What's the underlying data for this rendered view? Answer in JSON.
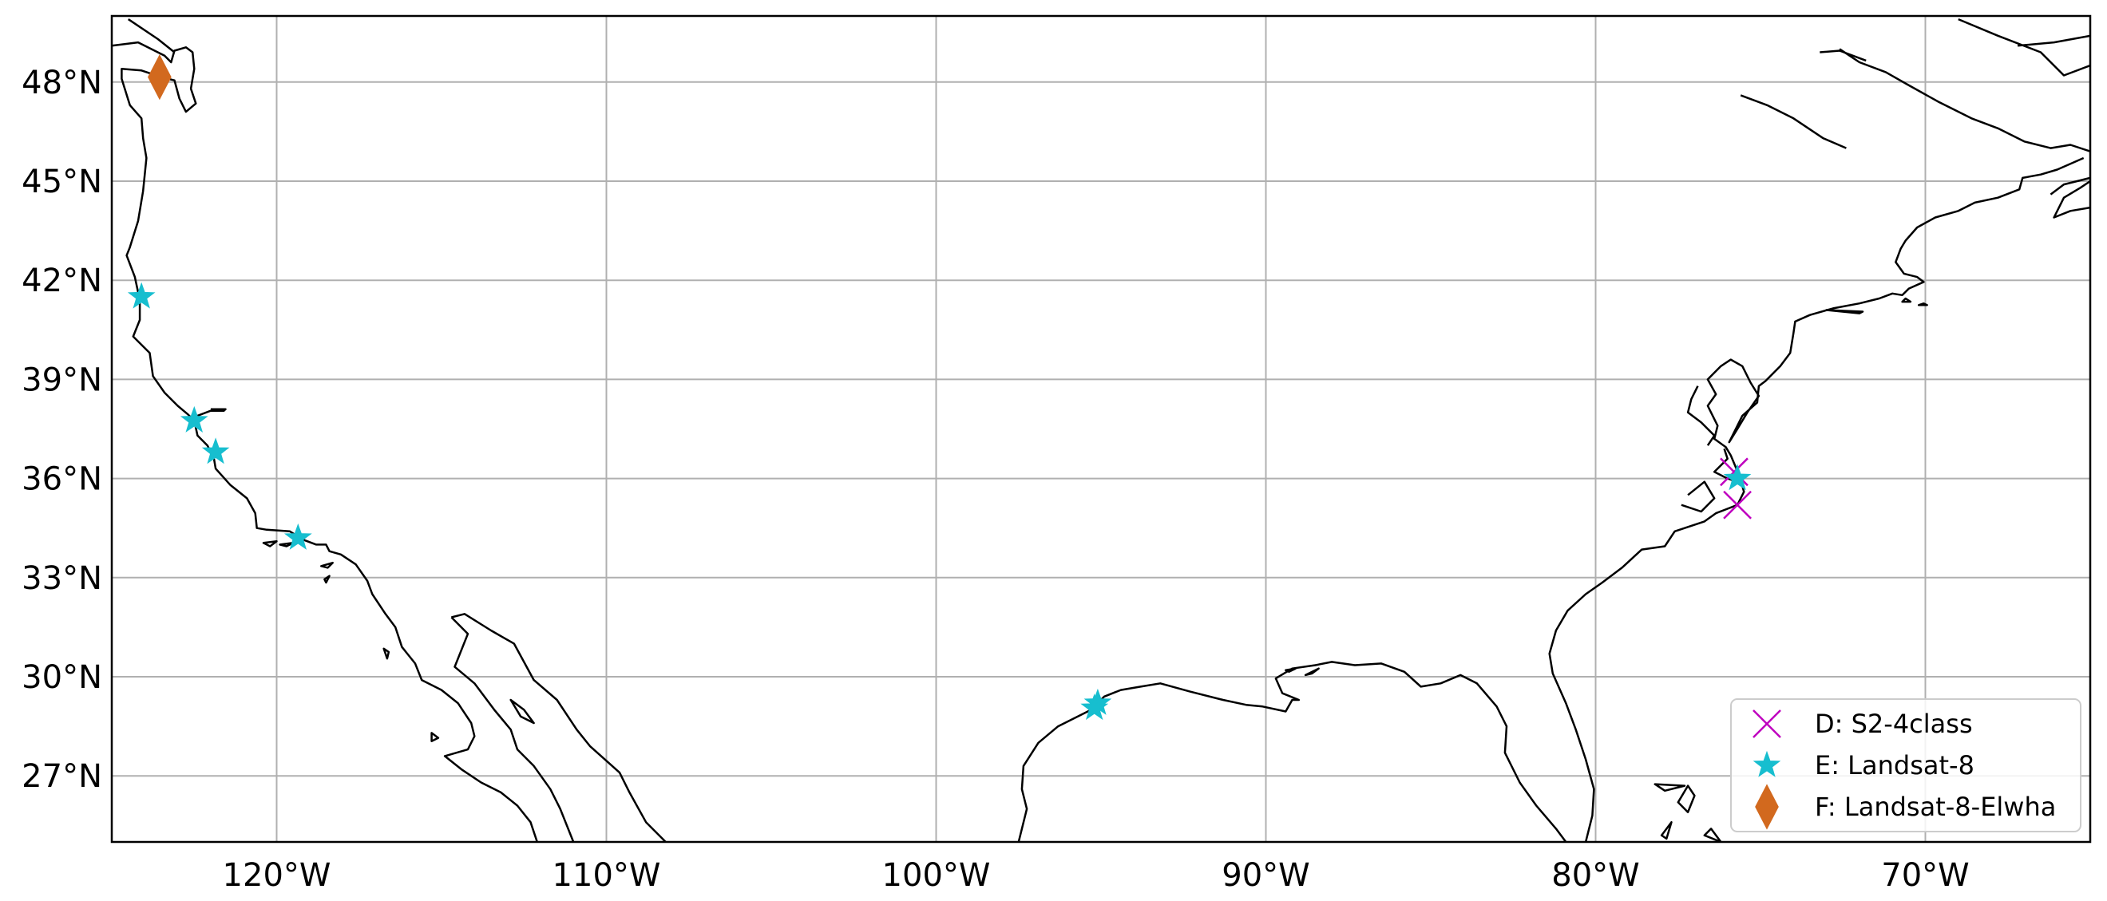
{
  "map": {
    "extent": {
      "lon": [
        -125,
        -65
      ],
      "lat": [
        25,
        50
      ]
    },
    "gridlines": true,
    "grid_color": "#b0b0b0",
    "lon_ticks": [
      {
        "value": -120,
        "label": "120°W"
      },
      {
        "value": -110,
        "label": "110°W"
      },
      {
        "value": -100,
        "label": "100°W"
      },
      {
        "value": -90,
        "label": "90°W"
      },
      {
        "value": -80,
        "label": "80°W"
      },
      {
        "value": -70,
        "label": "70°W"
      }
    ],
    "lat_ticks": [
      {
        "value": 48,
        "label": "48°N"
      },
      {
        "value": 45,
        "label": "45°N"
      },
      {
        "value": 42,
        "label": "42°N"
      },
      {
        "value": 39,
        "label": "39°N"
      },
      {
        "value": 36,
        "label": "36°N"
      },
      {
        "value": 33,
        "label": "33°N"
      },
      {
        "value": 30,
        "label": "30°N"
      },
      {
        "value": 27,
        "label": "27°N"
      }
    ],
    "legend_position": "lower-right"
  },
  "chart_data": {
    "type": "scatter",
    "series": [
      {
        "name": "D: S2-4class",
        "marker": "x",
        "color": "#bf00bf",
        "points": [
          {
            "lon": -75.8,
            "lat": 36.2
          },
          {
            "lon": -75.7,
            "lat": 35.2
          }
        ]
      },
      {
        "name": "E: Landsat-8",
        "marker": "star",
        "color": "#17becf",
        "points": [
          {
            "lon": -124.1,
            "lat": 41.5
          },
          {
            "lon": -122.5,
            "lat": 37.75
          },
          {
            "lon": -121.85,
            "lat": 36.8
          },
          {
            "lon": -119.35,
            "lat": 34.2
          },
          {
            "lon": -95.1,
            "lat": 29.2
          },
          {
            "lon": -95.2,
            "lat": 29.05
          },
          {
            "lon": -75.7,
            "lat": 36.0
          }
        ]
      },
      {
        "name": "F: Landsat-8-Elwha",
        "marker": "diamond",
        "color": "#d2691e",
        "points": [
          {
            "lon": -123.55,
            "lat": 48.15
          }
        ]
      }
    ]
  },
  "coastlines": [
    [
      [
        -125,
        49.1
      ],
      [
        -124.2,
        49.2
      ],
      [
        -123.4,
        48.8
      ],
      [
        -123.2,
        48.6
      ],
      [
        -123.1,
        48.95
      ],
      [
        -122.75,
        49.05
      ],
      [
        -122.55,
        48.9
      ],
      [
        -122.5,
        48.4
      ],
      [
        -122.6,
        47.8
      ],
      [
        -122.45,
        47.35
      ],
      [
        -122.75,
        47.1
      ],
      [
        -122.95,
        47.5
      ],
      [
        -123.1,
        48.05
      ],
      [
        -123.5,
        48.15
      ],
      [
        -124.1,
        48.35
      ],
      [
        -124.7,
        48.4
      ],
      [
        -124.7,
        48.1
      ],
      [
        -124.45,
        47.3
      ],
      [
        -124.1,
        46.9
      ],
      [
        -124.05,
        46.3
      ],
      [
        -123.95,
        45.7
      ],
      [
        -124.05,
        44.7
      ],
      [
        -124.2,
        43.8
      ],
      [
        -124.45,
        43.0
      ],
      [
        -124.55,
        42.75
      ],
      [
        -124.3,
        42.1
      ],
      [
        -124.15,
        41.4
      ],
      [
        -124.15,
        40.8
      ],
      [
        -124.35,
        40.3
      ],
      [
        -123.85,
        39.8
      ],
      [
        -123.75,
        39.1
      ],
      [
        -123.4,
        38.6
      ],
      [
        -123.0,
        38.2
      ],
      [
        -122.7,
        37.95
      ],
      [
        -122.5,
        37.75
      ],
      [
        -122.4,
        37.3
      ],
      [
        -122.1,
        37.0
      ],
      [
        -121.9,
        36.6
      ],
      [
        -121.85,
        36.3
      ],
      [
        -121.4,
        35.8
      ],
      [
        -120.9,
        35.4
      ],
      [
        -120.65,
        34.95
      ],
      [
        -120.6,
        34.5
      ],
      [
        -120.3,
        34.45
      ],
      [
        -119.6,
        34.4
      ],
      [
        -119.2,
        34.15
      ],
      [
        -118.8,
        34.0
      ],
      [
        -118.5,
        34.0
      ],
      [
        -118.4,
        33.8
      ],
      [
        -118.05,
        33.7
      ],
      [
        -117.6,
        33.4
      ],
      [
        -117.25,
        32.9
      ],
      [
        -117.1,
        32.5
      ],
      [
        -116.7,
        31.9
      ],
      [
        -116.4,
        31.5
      ],
      [
        -116.2,
        30.9
      ],
      [
        -115.8,
        30.4
      ],
      [
        -115.6,
        29.9
      ],
      [
        -115.0,
        29.6
      ],
      [
        -114.5,
        29.2
      ],
      [
        -114.1,
        28.6
      ],
      [
        -114.0,
        28.2
      ],
      [
        -114.2,
        27.8
      ],
      [
        -114.9,
        27.6
      ],
      [
        -114.4,
        27.2
      ],
      [
        -113.8,
        26.8
      ],
      [
        -113.2,
        26.5
      ],
      [
        -112.7,
        26.1
      ],
      [
        -112.3,
        25.6
      ],
      [
        -112.1,
        25.0
      ]
    ],
    [
      [
        -114.7,
        31.8
      ],
      [
        -114.2,
        31.3
      ],
      [
        -114.6,
        30.3
      ],
      [
        -114.0,
        29.8
      ],
      [
        -113.4,
        29.0
      ],
      [
        -112.9,
        28.4
      ],
      [
        -112.7,
        27.8
      ],
      [
        -112.2,
        27.3
      ],
      [
        -111.7,
        26.6
      ],
      [
        -111.4,
        26.0
      ],
      [
        -111.0,
        25.0
      ]
    ],
    [
      [
        -114.7,
        31.8
      ],
      [
        -114.3,
        31.9
      ],
      [
        -113.5,
        31.4
      ],
      [
        -112.8,
        31.0
      ],
      [
        -112.2,
        29.9
      ],
      [
        -111.5,
        29.3
      ],
      [
        -110.9,
        28.4
      ],
      [
        -110.5,
        27.9
      ],
      [
        -109.6,
        27.1
      ],
      [
        -109.3,
        26.5
      ],
      [
        -108.8,
        25.6
      ],
      [
        -108.2,
        25.0
      ]
    ],
    [
      [
        -97.5,
        25.0
      ],
      [
        -97.25,
        26.0
      ],
      [
        -97.4,
        26.6
      ],
      [
        -97.35,
        27.3
      ],
      [
        -96.9,
        28.0
      ],
      [
        -96.3,
        28.5
      ],
      [
        -95.3,
        29.0
      ],
      [
        -94.9,
        29.4
      ],
      [
        -94.4,
        29.6
      ],
      [
        -93.8,
        29.7
      ],
      [
        -93.2,
        29.8
      ],
      [
        -92.3,
        29.55
      ],
      [
        -91.3,
        29.3
      ],
      [
        -90.6,
        29.15
      ],
      [
        -90.1,
        29.1
      ],
      [
        -89.4,
        28.95
      ],
      [
        -89.2,
        29.3
      ],
      [
        -89.0,
        29.3
      ],
      [
        -89.5,
        29.5
      ],
      [
        -89.7,
        29.95
      ],
      [
        -89.2,
        30.25
      ],
      [
        -88.5,
        30.35
      ],
      [
        -88.0,
        30.45
      ],
      [
        -87.3,
        30.35
      ],
      [
        -86.5,
        30.4
      ],
      [
        -85.8,
        30.15
      ],
      [
        -85.3,
        29.7
      ],
      [
        -84.7,
        29.8
      ],
      [
        -84.1,
        30.05
      ],
      [
        -83.6,
        29.8
      ],
      [
        -83.0,
        29.1
      ],
      [
        -82.7,
        28.5
      ],
      [
        -82.75,
        27.7
      ],
      [
        -82.3,
        26.8
      ],
      [
        -81.8,
        26.1
      ],
      [
        -81.2,
        25.4
      ],
      [
        -80.9,
        25.0
      ]
    ],
    [
      [
        -80.3,
        25.0
      ],
      [
        -80.1,
        25.8
      ],
      [
        -80.05,
        26.6
      ],
      [
        -80.3,
        27.5
      ],
      [
        -80.6,
        28.4
      ],
      [
        -80.9,
        29.2
      ],
      [
        -81.3,
        30.1
      ],
      [
        -81.4,
        30.7
      ],
      [
        -81.2,
        31.4
      ],
      [
        -80.85,
        32.0
      ],
      [
        -80.3,
        32.5
      ],
      [
        -79.8,
        32.85
      ],
      [
        -79.2,
        33.3
      ],
      [
        -78.6,
        33.85
      ],
      [
        -77.9,
        33.95
      ],
      [
        -77.6,
        34.4
      ],
      [
        -76.7,
        34.7
      ],
      [
        -76.35,
        34.95
      ],
      [
        -75.7,
        35.2
      ],
      [
        -75.5,
        35.6
      ],
      [
        -75.65,
        36.1
      ],
      [
        -75.9,
        36.7
      ],
      [
        -76.05,
        36.95
      ],
      [
        -76.4,
        37.2
      ],
      [
        -76.3,
        37.6
      ],
      [
        -76.6,
        38.2
      ],
      [
        -76.35,
        38.55
      ],
      [
        -76.6,
        39.0
      ],
      [
        -76.2,
        39.4
      ],
      [
        -75.9,
        39.6
      ],
      [
        -75.55,
        39.4
      ],
      [
        -75.3,
        38.9
      ],
      [
        -75.05,
        38.5
      ],
      [
        -75.4,
        38.0
      ],
      [
        -75.7,
        37.5
      ],
      [
        -75.95,
        37.1
      ],
      [
        -75.55,
        37.9
      ],
      [
        -75.1,
        38.3
      ],
      [
        -75.05,
        38.8
      ],
      [
        -74.85,
        38.95
      ],
      [
        -74.4,
        39.4
      ],
      [
        -74.1,
        39.8
      ],
      [
        -74.0,
        40.4
      ],
      [
        -73.95,
        40.75
      ],
      [
        -73.5,
        40.95
      ],
      [
        -72.8,
        41.15
      ],
      [
        -72.0,
        41.3
      ],
      [
        -71.4,
        41.45
      ],
      [
        -71.0,
        41.6
      ],
      [
        -70.7,
        41.55
      ],
      [
        -70.5,
        41.75
      ],
      [
        -70.05,
        41.95
      ],
      [
        -70.25,
        42.1
      ],
      [
        -70.65,
        42.2
      ],
      [
        -70.9,
        42.55
      ],
      [
        -70.75,
        42.95
      ],
      [
        -70.6,
        43.2
      ],
      [
        -70.25,
        43.6
      ],
      [
        -69.7,
        43.9
      ],
      [
        -69.0,
        44.1
      ],
      [
        -68.5,
        44.35
      ],
      [
        -67.8,
        44.5
      ],
      [
        -67.15,
        44.75
      ],
      [
        -67.05,
        45.1
      ],
      [
        -66.5,
        45.2
      ],
      [
        -66.0,
        45.35
      ],
      [
        -65.2,
        45.7
      ]
    ],
    [
      [
        -65.0,
        44.2
      ],
      [
        -65.6,
        44.1
      ],
      [
        -66.1,
        43.9
      ],
      [
        -65.8,
        44.5
      ],
      [
        -65.3,
        44.8
      ],
      [
        -65.0,
        45.0
      ]
    ],
    [
      [
        -65.0,
        45.1
      ],
      [
        -65.8,
        44.9
      ],
      [
        -66.2,
        44.6
      ]
    ],
    [
      [
        -65.0,
        45.9
      ],
      [
        -65.6,
        46.1
      ],
      [
        -66.2,
        46.0
      ],
      [
        -67.0,
        46.2
      ],
      [
        -67.8,
        46.6
      ],
      [
        -68.6,
        46.9
      ],
      [
        -69.6,
        47.4
      ],
      [
        -70.5,
        47.9
      ],
      [
        -71.2,
        48.3
      ],
      [
        -72.0,
        48.6
      ],
      [
        -72.6,
        49.0
      ]
    ],
    [
      [
        -72.4,
        46.0
      ],
      [
        -73.1,
        46.3
      ],
      [
        -74.0,
        46.9
      ],
      [
        -74.8,
        47.3
      ],
      [
        -75.6,
        47.6
      ]
    ],
    [
      [
        -65.0,
        48.5
      ],
      [
        -65.8,
        48.2
      ],
      [
        -66.5,
        48.9
      ],
      [
        -67.8,
        49.4
      ],
      [
        -69.0,
        49.9
      ]
    ],
    [
      [
        -65.0,
        49.4
      ],
      [
        -66.1,
        49.2
      ],
      [
        -67.2,
        49.1
      ]
    ],
    [
      [
        -73.2,
        48.9
      ],
      [
        -72.6,
        48.95
      ],
      [
        -71.8,
        48.65
      ]
    ],
    [
      [
        -123.1,
        48.9
      ],
      [
        -123.6,
        49.3
      ],
      [
        -124.5,
        49.9
      ]
    ],
    [
      [
        -122.5,
        37.75
      ],
      [
        -122.4,
        37.9
      ],
      [
        -122.0,
        38.05
      ],
      [
        -121.6,
        38.05
      ],
      [
        -121.55,
        38.1
      ],
      [
        -122.0,
        38.1
      ]
    ],
    [
      [
        -76.1,
        36.9
      ],
      [
        -76.0,
        36.6
      ],
      [
        -76.4,
        36.2
      ],
      [
        -76.0,
        36.0
      ],
      [
        -75.7,
        35.9
      ]
    ],
    [
      [
        -76.9,
        38.8
      ],
      [
        -77.1,
        38.4
      ],
      [
        -77.2,
        38.0
      ],
      [
        -76.8,
        37.7
      ],
      [
        -76.4,
        37.3
      ],
      [
        -76.6,
        37.0
      ]
    ],
    [
      [
        -77.4,
        35.2
      ],
      [
        -76.8,
        35.0
      ],
      [
        -76.4,
        35.4
      ],
      [
        -76.7,
        35.9
      ],
      [
        -77.2,
        35.5
      ]
    ]
  ],
  "islands": [
    [
      [
        -118.65,
        33.35
      ],
      [
        -118.3,
        33.45
      ],
      [
        -118.45,
        33.3
      ],
      [
        -118.65,
        33.35
      ]
    ],
    [
      [
        -120.4,
        34.05
      ],
      [
        -120.0,
        34.1
      ],
      [
        -120.2,
        33.95
      ],
      [
        -120.4,
        34.05
      ]
    ],
    [
      [
        -119.9,
        34.0
      ],
      [
        -119.5,
        34.05
      ],
      [
        -119.7,
        33.95
      ],
      [
        -119.9,
        34.0
      ]
    ],
    [
      [
        -118.55,
        32.95
      ],
      [
        -118.4,
        33.05
      ],
      [
        -118.5,
        32.85
      ],
      [
        -118.55,
        32.95
      ]
    ],
    [
      [
        -115.3,
        28.3
      ],
      [
        -115.1,
        28.15
      ],
      [
        -115.3,
        28.05
      ],
      [
        -115.3,
        28.3
      ]
    ],
    [
      [
        -112.9,
        29.3
      ],
      [
        -112.5,
        29.0
      ],
      [
        -112.2,
        28.6
      ],
      [
        -112.6,
        28.8
      ],
      [
        -112.9,
        29.3
      ]
    ],
    [
      [
        -116.75,
        30.85
      ],
      [
        -116.6,
        30.75
      ],
      [
        -116.65,
        30.55
      ],
      [
        -116.75,
        30.85
      ]
    ],
    [
      [
        -78.2,
        26.75
      ],
      [
        -77.3,
        26.7
      ],
      [
        -77.9,
        26.55
      ],
      [
        -78.2,
        26.75
      ]
    ],
    [
      [
        -77.5,
        26.2
      ],
      [
        -77.2,
        26.7
      ],
      [
        -77.0,
        26.4
      ],
      [
        -77.2,
        25.9
      ],
      [
        -77.5,
        26.2
      ]
    ],
    [
      [
        -78.0,
        25.2
      ],
      [
        -77.7,
        25.6
      ],
      [
        -77.85,
        25.1
      ],
      [
        -78.0,
        25.2
      ]
    ],
    [
      [
        -76.5,
        25.4
      ],
      [
        -76.2,
        25.0
      ],
      [
        -76.7,
        25.2
      ],
      [
        -76.5,
        25.4
      ]
    ],
    [
      [
        -70.05,
        41.3
      ],
      [
        -69.95,
        41.25
      ],
      [
        -70.2,
        41.25
      ],
      [
        -70.05,
        41.3
      ]
    ],
    [
      [
        -70.6,
        41.45
      ],
      [
        -70.45,
        41.35
      ],
      [
        -70.7,
        41.35
      ],
      [
        -70.6,
        41.45
      ]
    ],
    [
      [
        -73.0,
        41.1
      ],
      [
        -72.0,
        41.0
      ],
      [
        -71.9,
        41.05
      ],
      [
        -73.0,
        41.1
      ]
    ],
    [
      [
        -89.4,
        30.2
      ],
      [
        -89.1,
        30.25
      ],
      [
        -89.3,
        30.15
      ],
      [
        -89.4,
        30.2
      ]
    ],
    [
      [
        -88.8,
        30.05
      ],
      [
        -88.4,
        30.25
      ],
      [
        -88.6,
        30.1
      ],
      [
        -88.8,
        30.05
      ]
    ]
  ]
}
